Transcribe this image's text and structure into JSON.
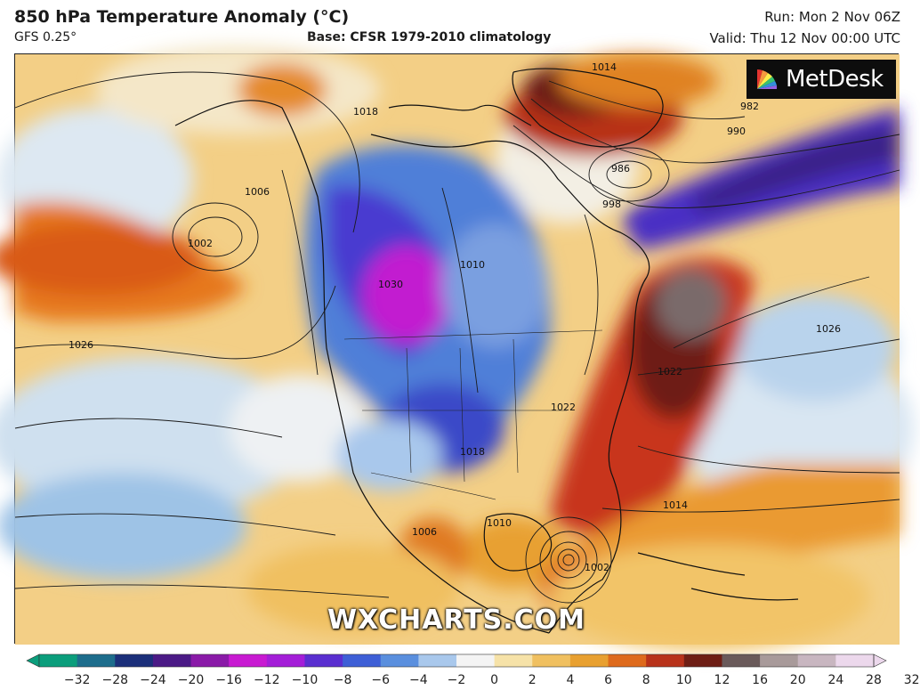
{
  "header": {
    "title": "850 hPa Temperature Anomaly (°C)",
    "model": "GFS 0.25°",
    "base": "Base: CFSR 1979-2010 climatology",
    "run": "Run: Mon 2 Nov 06Z",
    "valid": "Valid: Thu 12 Nov 00:00 UTC"
  },
  "logo": {
    "name": "MetDesk",
    "icon": "metdesk-fan-icon"
  },
  "watermark": "WXCHARTS.COM",
  "map": {
    "isobar_labels": [
      "1014",
      "982",
      "990",
      "986",
      "998",
      "1002",
      "1006",
      "1010",
      "1018",
      "1022",
      "1026",
      "1026",
      "1014",
      "1010",
      "1006",
      "1002",
      "1022",
      "1030",
      "1018"
    ]
  },
  "colorbar": {
    "ticks": [
      "−32",
      "−28",
      "−24",
      "−20",
      "−16",
      "−12",
      "−10",
      "−8",
      "−6",
      "−4",
      "−2",
      "0",
      "2",
      "4",
      "6",
      "8",
      "10",
      "12",
      "16",
      "20",
      "24",
      "28",
      "32"
    ],
    "colors": [
      "#0b9e7c",
      "#1d6d8c",
      "#1b2f7a",
      "#4b1a86",
      "#8a1aa8",
      "#c81ad2",
      "#a41ed8",
      "#5a2fd0",
      "#3e5fd6",
      "#5a8fde",
      "#a9c8ec",
      "#f4f4f4",
      "#f6e2a8",
      "#f0c060",
      "#e8a030",
      "#de6a1c",
      "#b8321a",
      "#6e1e14",
      "#6a5a5a",
      "#a89a9a",
      "#c8b6c0",
      "#ecd8ec"
    ]
  }
}
